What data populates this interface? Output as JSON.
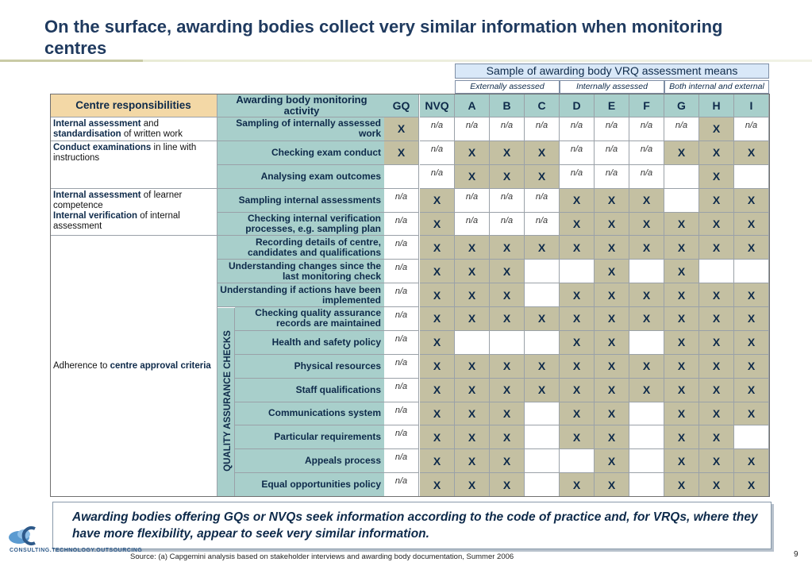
{
  "title": "On the surface, awarding bodies collect very similar information when monitoring centres",
  "vrq_header": "Sample of awarding body VRQ assessment means",
  "groups": [
    "Externally assessed",
    "Internally assessed",
    "Both internal and external"
  ],
  "table": {
    "resp_header": "Centre responsibilities",
    "activity_header": "Awarding body monitoring activity",
    "columns": [
      "GQ",
      "NVQ",
      "A",
      "B",
      "C",
      "D",
      "E",
      "F",
      "G",
      "H",
      "I"
    ],
    "qa_label": "QUALITY ASSURANCE CHECKS",
    "responsibilities": [
      {
        "bold1": "Internal assessment",
        "plain1": " and ",
        "bold2": "standardisation",
        "plain2": " of written work"
      },
      {
        "bold1": "Conduct examinations",
        "plain1": " in line with instructions",
        "bold2": "",
        "plain2": ""
      },
      {
        "bold1": "Internal assessment",
        "plain1": " of learner competence",
        "bold2": "Internal verification",
        "plain2": " of internal assessment"
      },
      {
        "bold1": "",
        "plain1": "Adherence to ",
        "bold2": "centre approval criteria",
        "plain2": ""
      }
    ],
    "rows": [
      {
        "activity": "Sampling of internally assessed work",
        "values": [
          "X",
          "n/a",
          "n/a",
          "n/a",
          "n/a",
          "n/a",
          "n/a",
          "n/a",
          "n/a",
          "X",
          "n/a"
        ]
      },
      {
        "activity": "Checking exam conduct",
        "values": [
          "X",
          "n/a",
          "X",
          "X",
          "X",
          "n/a",
          "n/a",
          "n/a",
          "X",
          "X",
          "X"
        ]
      },
      {
        "activity": "Analysing exam outcomes",
        "values": [
          "",
          "n/a",
          "X",
          "X",
          "X",
          "n/a",
          "n/a",
          "n/a",
          "",
          "X",
          ""
        ]
      },
      {
        "activity": "Sampling internal assessments",
        "values": [
          "n/a",
          "X",
          "n/a",
          "n/a",
          "n/a",
          "X",
          "X",
          "X",
          "",
          "X",
          "X"
        ]
      },
      {
        "activity": "Checking internal verification processes, e.g. sampling plan",
        "values": [
          "n/a",
          "X",
          "n/a",
          "n/a",
          "n/a",
          "X",
          "X",
          "X",
          "X",
          "X",
          "X"
        ]
      },
      {
        "activity": "Recording details of centre, candidates and qualifications",
        "values": [
          "n/a",
          "X",
          "X",
          "X",
          "X",
          "X",
          "X",
          "X",
          "X",
          "X",
          "X"
        ]
      },
      {
        "activity": "Understanding changes since the last monitoring check",
        "values": [
          "n/a",
          "X",
          "X",
          "X",
          "",
          "",
          "X",
          "",
          "X",
          "",
          ""
        ]
      },
      {
        "activity": "Understanding if actions have been implemented",
        "values": [
          "n/a",
          "X",
          "X",
          "X",
          "",
          "X",
          "X",
          "X",
          "X",
          "X",
          "X"
        ]
      },
      {
        "activity": "Checking quality assurance records are maintained",
        "values": [
          "n/a",
          "X",
          "X",
          "X",
          "X",
          "X",
          "X",
          "X",
          "X",
          "X",
          "X"
        ]
      },
      {
        "activity": "Health and safety policy",
        "values": [
          "n/a",
          "X",
          "",
          "",
          "",
          "X",
          "X",
          "",
          "X",
          "X",
          "X"
        ]
      },
      {
        "activity": "Physical resources",
        "values": [
          "n/a",
          "X",
          "X",
          "X",
          "X",
          "X",
          "X",
          "X",
          "X",
          "X",
          "X"
        ]
      },
      {
        "activity": "Staff qualifications",
        "values": [
          "n/a",
          "X",
          "X",
          "X",
          "X",
          "X",
          "X",
          "X",
          "X",
          "X",
          "X"
        ]
      },
      {
        "activity": "Communications system",
        "values": [
          "n/a",
          "X",
          "X",
          "X",
          "",
          "X",
          "X",
          "",
          "X",
          "X",
          "X"
        ]
      },
      {
        "activity": "Particular requirements",
        "values": [
          "n/a",
          "X",
          "X",
          "X",
          "",
          "X",
          "X",
          "",
          "X",
          "X",
          ""
        ]
      },
      {
        "activity": "Appeals process",
        "values": [
          "n/a",
          "X",
          "X",
          "X",
          "",
          "",
          "X",
          "",
          "X",
          "X",
          "X"
        ]
      },
      {
        "activity": "Equal opportunities policy",
        "values": [
          "n/a",
          "X",
          "X",
          "X",
          "",
          "X",
          "X",
          "",
          "X",
          "X",
          "X"
        ]
      }
    ]
  },
  "callout": "Awarding bodies offering GQs or NVQs seek information according to the code of practice and, for VRQs, where they have more flexibility, appear to seek very similar information.",
  "logo_text": "CONSULTING.TECHNOLOGY.OUTSOURCING",
  "source": "Source: (a) Capgemini analysis based on stakeholder interviews and awarding body documentation, Summer 2006",
  "page_number": "9"
}
